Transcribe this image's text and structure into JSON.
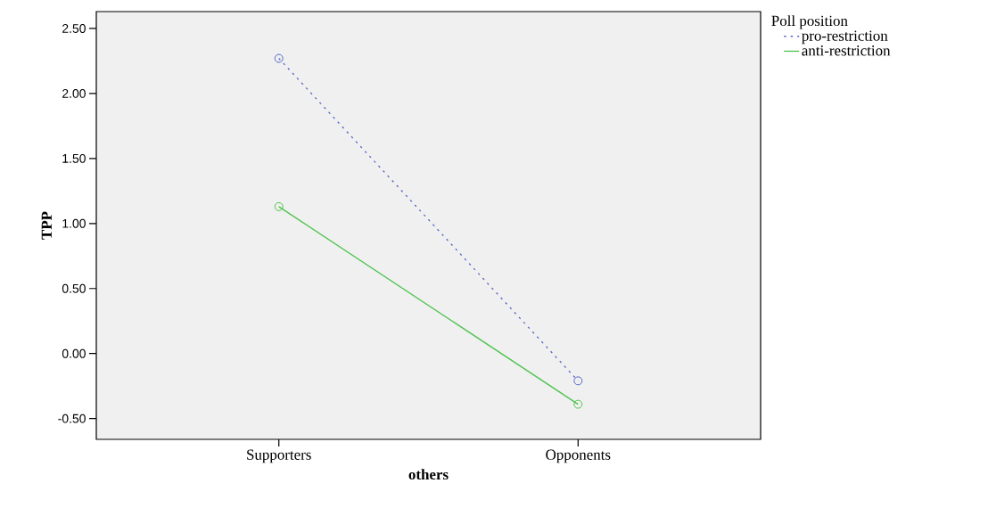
{
  "chart_data": {
    "type": "line",
    "xlabel": "others",
    "ylabel": "TPP",
    "legend_title": "Poll position",
    "categories": [
      "Supporters",
      "Opponents"
    ],
    "series": [
      {
        "name": "pro-restriction",
        "color": "#5566c4",
        "values": [
          2.27,
          -0.21
        ],
        "line_style": "dashed"
      },
      {
        "name": "anti-restriction",
        "color": "#4cc24c",
        "values": [
          1.13,
          -0.39
        ],
        "line_style": "solid"
      }
    ],
    "ylim": [
      -0.66,
      2.63
    ],
    "yticks": [
      {
        "value": -0.5,
        "label": "-0.50"
      },
      {
        "value": 0,
        "label": "0.00"
      },
      {
        "value": 0.5,
        "label": "0.50"
      },
      {
        "value": 1,
        "label": "1.00"
      },
      {
        "value": 1.5,
        "label": "1.50"
      },
      {
        "value": 2,
        "label": "2.00"
      },
      {
        "value": 2.5,
        "label": "2.50"
      }
    ],
    "marker": "circle",
    "legend": "top right",
    "grid": false
  }
}
